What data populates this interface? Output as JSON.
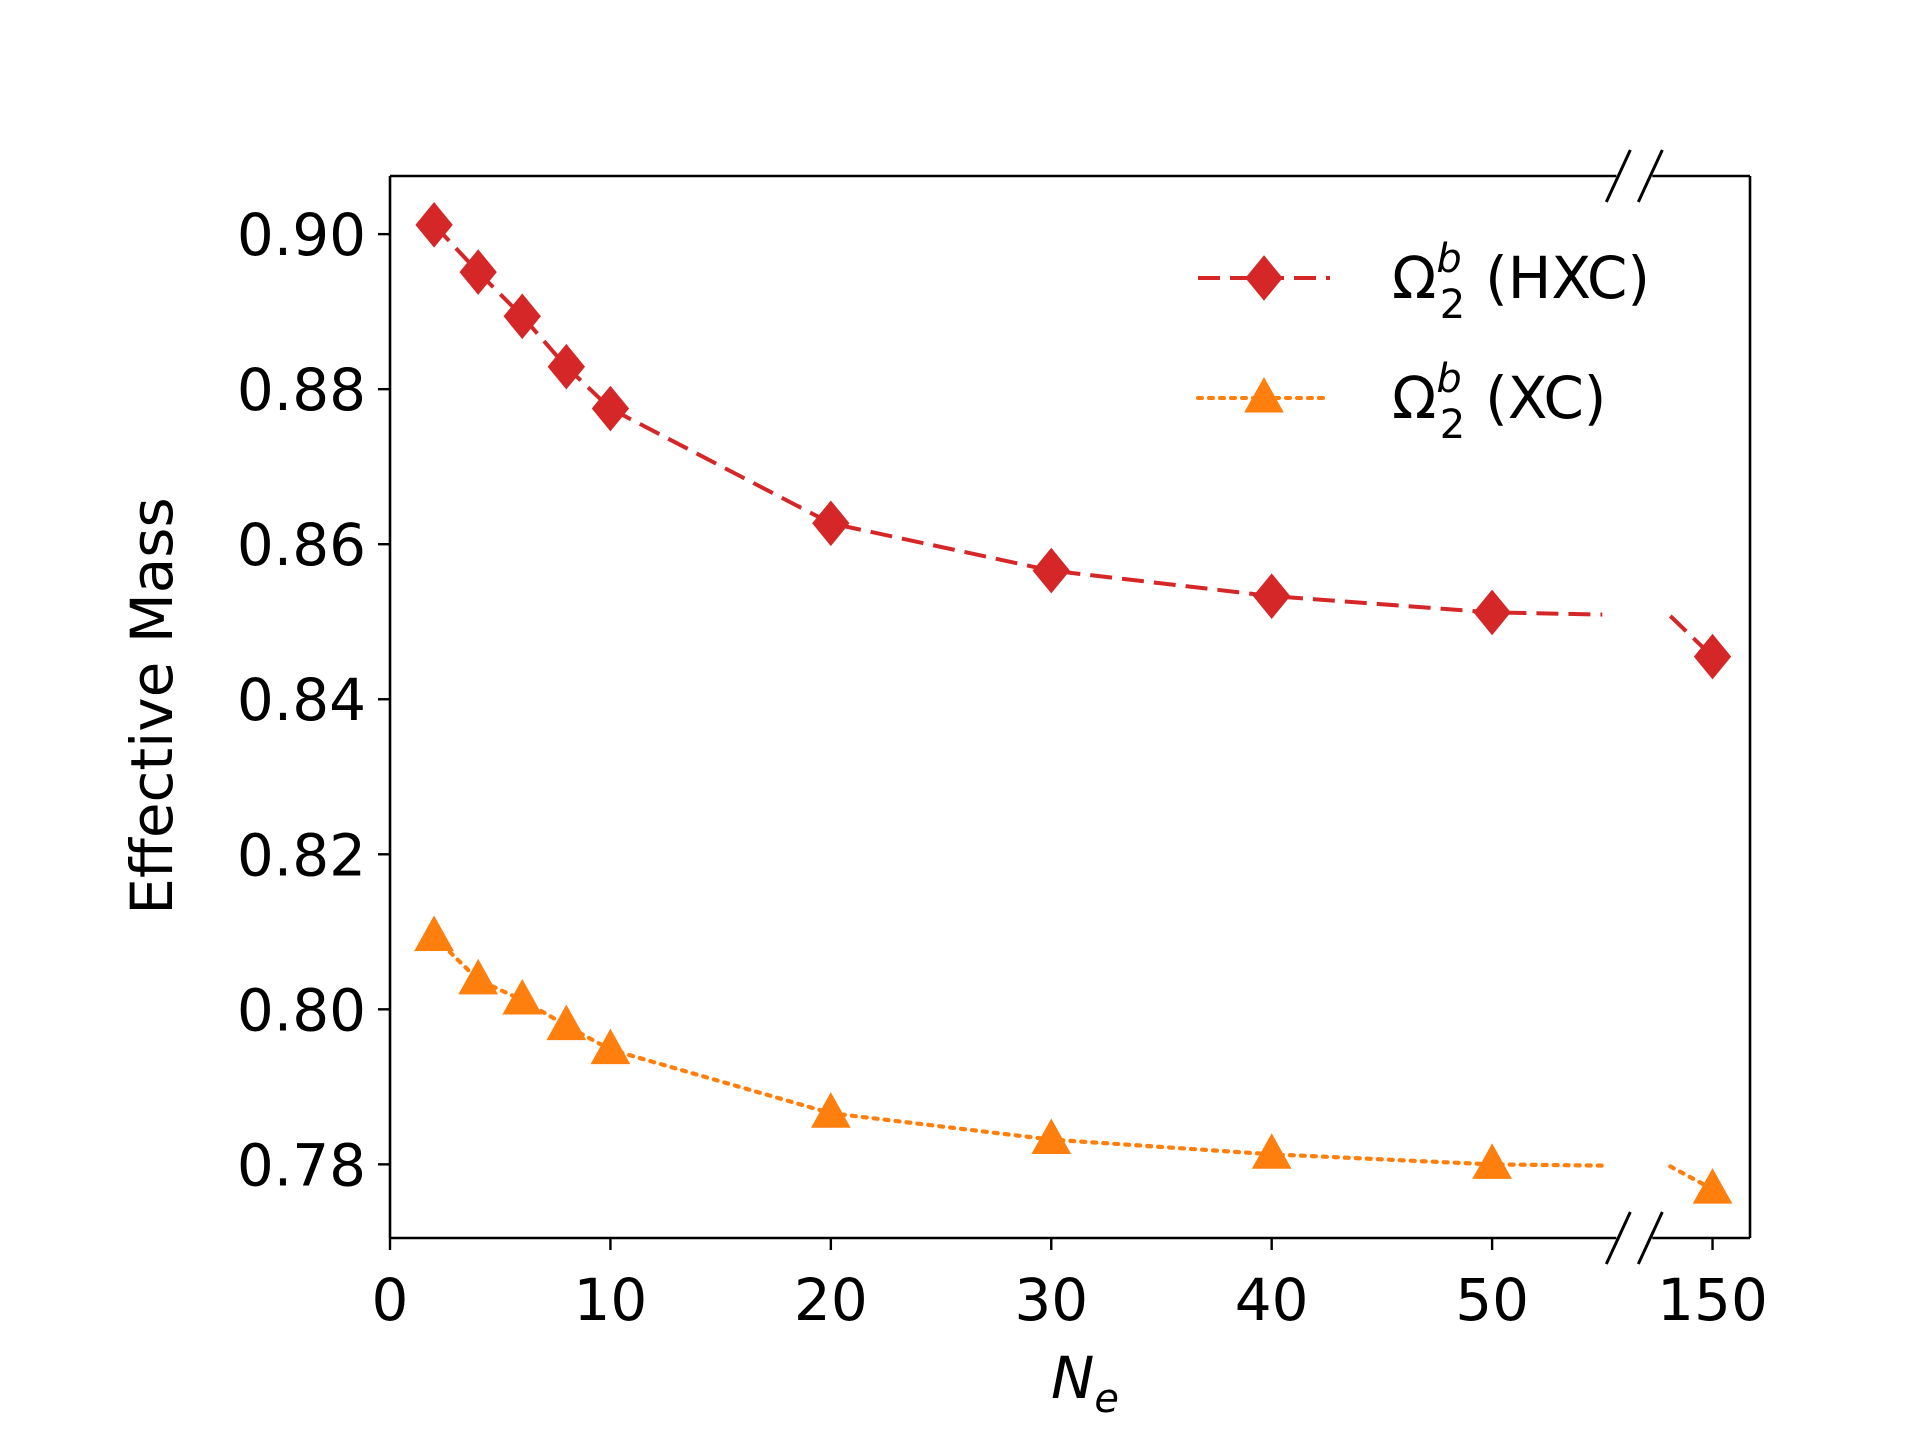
{
  "chart_data": {
    "type": "line",
    "xlabel": "N",
    "xlabel_subscript": "e",
    "ylabel": "Effective Mass",
    "ylim": [
      0.7705,
      0.9075
    ],
    "xlim": [
      0,
      151.7
    ],
    "axis_break": {
      "from": 55,
      "to": 145
    },
    "x_ticks": [
      0,
      10,
      20,
      30,
      40,
      50,
      150
    ],
    "x_tick_labels": [
      "0",
      "10",
      "20",
      "30",
      "40",
      "50",
      "150"
    ],
    "y_ticks": [
      0.78,
      0.8,
      0.82,
      0.84,
      0.86,
      0.88,
      0.9
    ],
    "y_tick_labels": [
      "0.78",
      "0.80",
      "0.82",
      "0.84",
      "0.86",
      "0.88",
      "0.90"
    ],
    "series": [
      {
        "name": "HXC",
        "legend_base": "Ω",
        "legend_sub": "2",
        "legend_sup": "b",
        "legend_label": "(HXC)",
        "color": "#d62728",
        "line_style": "dashed",
        "marker": "diamond",
        "x": [
          2,
          4,
          6,
          8,
          10,
          20,
          30,
          40,
          50,
          150
        ],
        "values": [
          0.9012,
          0.8951,
          0.8894,
          0.8829,
          0.8775,
          0.8627,
          0.8566,
          0.8533,
          0.8512,
          0.8455
        ]
      },
      {
        "name": "XC",
        "legend_base": "Ω",
        "legend_sub": "2",
        "legend_sup": "b",
        "legend_label": "(XC)",
        "color": "#ff7f0e",
        "line_style": "dotted",
        "marker": "triangle",
        "x": [
          2,
          4,
          6,
          8,
          10,
          20,
          30,
          40,
          50,
          150
        ],
        "values": [
          0.8094,
          0.8038,
          0.8012,
          0.7979,
          0.7948,
          0.7866,
          0.7832,
          0.7813,
          0.78,
          0.7768
        ]
      }
    ]
  }
}
